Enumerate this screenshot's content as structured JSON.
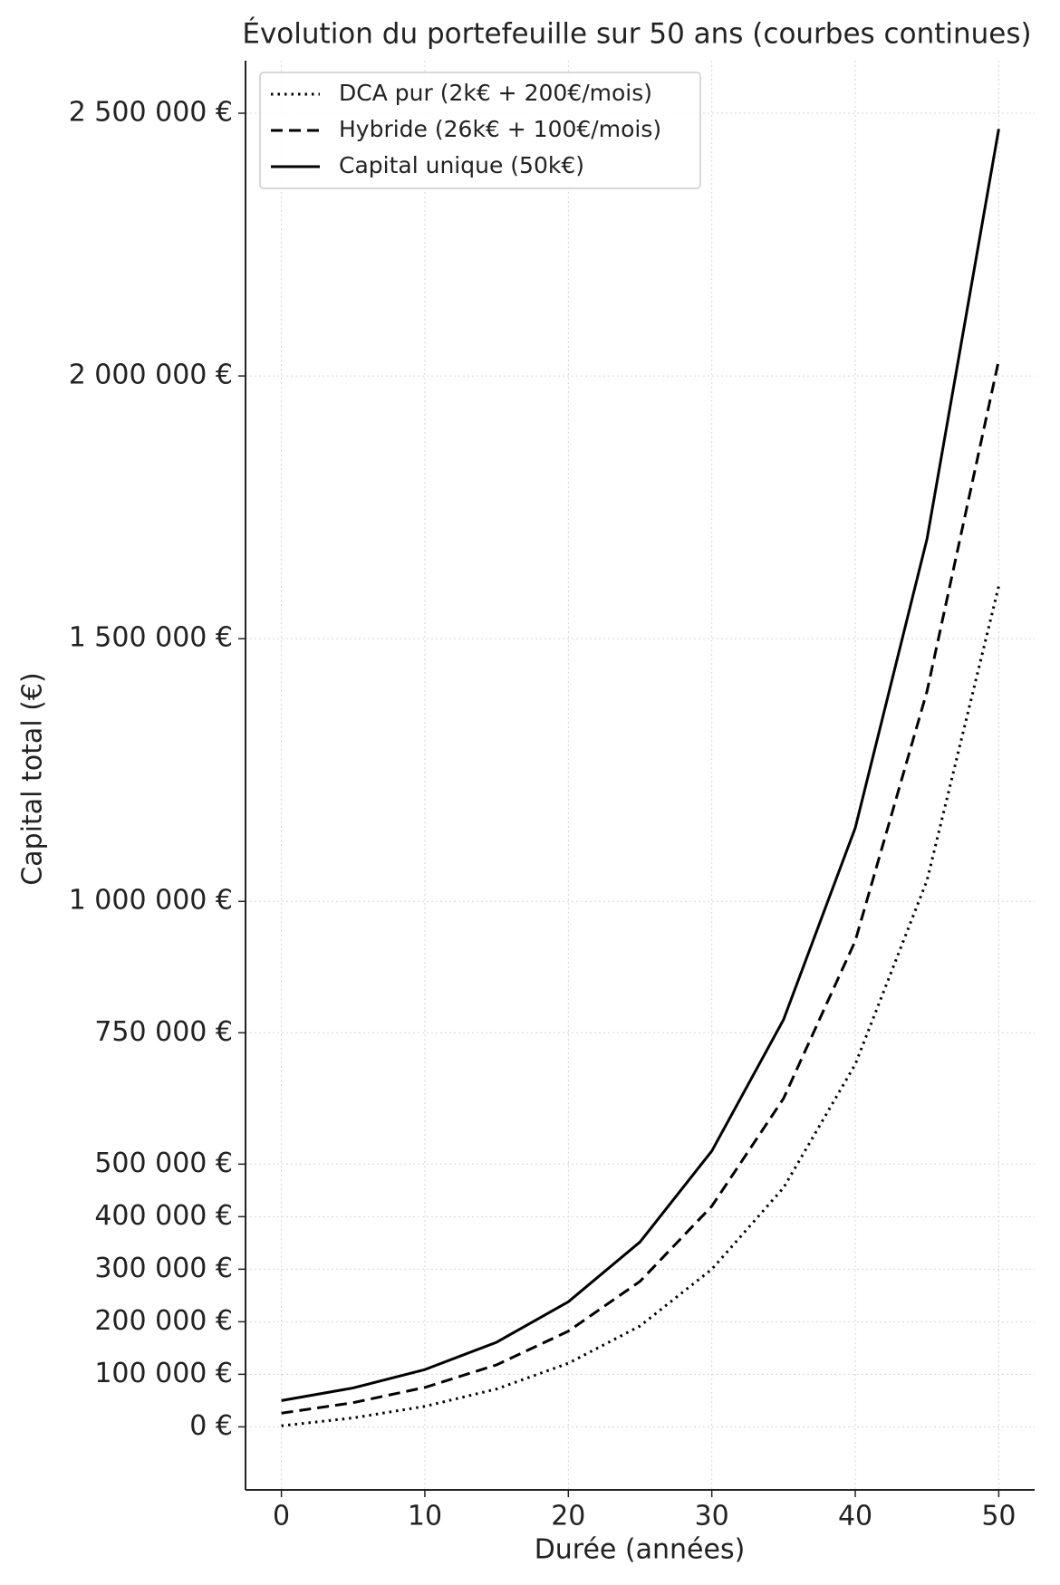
{
  "chart_data": {
    "type": "line",
    "title": "Évolution du portefeuille sur 50 ans (courbes continues)",
    "x_label": "Durée (années)",
    "y_label": "Capital total (€)",
    "x": [
      0,
      5,
      10,
      15,
      20,
      25,
      30,
      35,
      40,
      45,
      50
    ],
    "series": [
      {
        "name": "DCA pur (2k€ + 200€/mois)",
        "color": "#000000",
        "linestyle": "dotted",
        "values": [
          2000,
          17000,
          39000,
          72000,
          121000,
          192000,
          300000,
          455000,
          690000,
          1040000,
          1600000
        ]
      },
      {
        "name": "Hybride (26k€ + 100€/mois)",
        "color": "#000000",
        "linestyle": "dashed",
        "values": [
          26000,
          46000,
          75000,
          118000,
          182000,
          277000,
          420000,
          625000,
          925000,
          1400000,
          2030000
        ]
      },
      {
        "name": "Capital unique (50k€)",
        "color": "#000000",
        "linestyle": "solid",
        "values": [
          50000,
          74000,
          109000,
          161000,
          238000,
          352000,
          525000,
          775000,
          1140000,
          1690000,
          2470000
        ]
      }
    ],
    "xlim": [
      -2.5,
      52.5
    ],
    "ylim": [
      -120000,
      2600000
    ],
    "xticks": [
      0,
      10,
      20,
      30,
      40,
      50
    ],
    "yticks": [
      {
        "value": 0,
        "label": "0 €"
      },
      {
        "value": 100000,
        "label": "100 000 €"
      },
      {
        "value": 200000,
        "label": "200 000 €"
      },
      {
        "value": 300000,
        "label": "300 000 €"
      },
      {
        "value": 400000,
        "label": "400 000 €"
      },
      {
        "value": 500000,
        "label": "500 000 €"
      },
      {
        "value": 750000,
        "label": "750 000 €"
      },
      {
        "value": 1000000,
        "label": "1 000 000 €"
      },
      {
        "value": 1500000,
        "label": "1 500 000 €"
      },
      {
        "value": 2000000,
        "label": "2 000 000 €"
      },
      {
        "value": 2500000,
        "label": "2 500 000 €"
      }
    ],
    "grid": true,
    "legend": "upper left"
  }
}
